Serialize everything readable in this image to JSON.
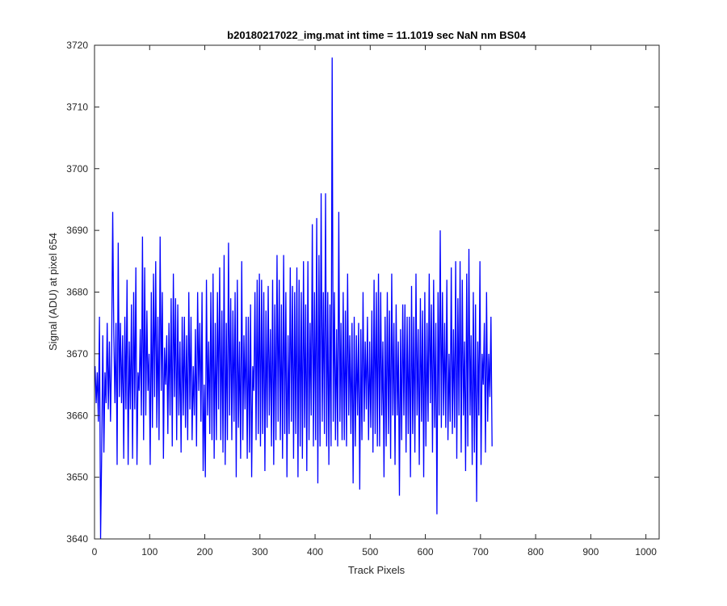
{
  "chart_data": {
    "type": "line",
    "title": "b20180217022_img.mat int time = 11.1019 sec  NaN nm BS04",
    "xlabel": "Track Pixels",
    "ylabel": "Signal (ADU) at pixel 654",
    "xlim": [
      0,
      1024
    ],
    "ylim": [
      3640,
      3720
    ],
    "xticks": [
      0,
      100,
      200,
      300,
      400,
      500,
      600,
      700,
      800,
      900,
      1000
    ],
    "yticks": [
      3640,
      3650,
      3660,
      3670,
      3680,
      3690,
      3700,
      3710,
      3720
    ],
    "grid": false,
    "line_color": "#0000ff",
    "x_start": 1,
    "x_step": 2,
    "series": [
      {
        "values": [
          3668,
          3662,
          3667,
          3659,
          3676,
          3640,
          3654,
          3673,
          3654,
          3667,
          3662,
          3675,
          3661,
          3672,
          3659,
          3670,
          3693,
          3673,
          3662,
          3675,
          3652,
          3688,
          3663,
          3675,
          3662,
          3673,
          3653,
          3676,
          3661,
          3682,
          3652,
          3672,
          3661,
          3678,
          3653,
          3680,
          3661,
          3684,
          3652,
          3667,
          3664,
          3674,
          3660,
          3689,
          3656,
          3684,
          3660,
          3677,
          3664,
          3670,
          3652,
          3680,
          3658,
          3683,
          3663,
          3685,
          3658,
          3676,
          3656,
          3689,
          3664,
          3680,
          3653,
          3671,
          3665,
          3673,
          3657,
          3675,
          3660,
          3679,
          3655,
          3683,
          3663,
          3679,
          3656,
          3678,
          3660,
          3672,
          3654,
          3676,
          3660,
          3676,
          3658,
          3673,
          3656,
          3680,
          3661,
          3676,
          3656,
          3668,
          3660,
          3674,
          3655,
          3680,
          3664,
          3675,
          3659,
          3680,
          3651,
          3665,
          3650,
          3682,
          3660,
          3672,
          3657,
          3680,
          3656,
          3683,
          3653,
          3675,
          3656,
          3680,
          3661,
          3684,
          3656,
          3677,
          3654,
          3686,
          3652,
          3675,
          3656,
          3688,
          3660,
          3679,
          3656,
          3677,
          3659,
          3680,
          3650,
          3682,
          3658,
          3672,
          3653,
          3685,
          3656,
          3673,
          3661,
          3676,
          3653,
          3676,
          3654,
          3678,
          3650,
          3668,
          3664,
          3680,
          3656,
          3682,
          3657,
          3683,
          3655,
          3682,
          3657,
          3680,
          3651,
          3677,
          3658,
          3681,
          3660,
          3674,
          3655,
          3682,
          3652,
          3678,
          3656,
          3686,
          3659,
          3682,
          3656,
          3678,
          3653,
          3686,
          3657,
          3680,
          3650,
          3673,
          3657,
          3684,
          3659,
          3681,
          3653,
          3680,
          3657,
          3684,
          3650,
          3682,
          3655,
          3680,
          3653,
          3685,
          3658,
          3678,
          3651,
          3685,
          3656,
          3675,
          3660,
          3691,
          3655,
          3680,
          3656,
          3692,
          3649,
          3686,
          3655,
          3696,
          3659,
          3680,
          3657,
          3696,
          3655,
          3680,
          3652,
          3678,
          3655,
          3718,
          3659,
          3680,
          3656,
          3674,
          3655,
          3693,
          3659,
          3675,
          3656,
          3680,
          3656,
          3677,
          3655,
          3683,
          3660,
          3673,
          3657,
          3675,
          3649,
          3676,
          3655,
          3673,
          3660,
          3675,
          3648,
          3674,
          3656,
          3680,
          3659,
          3672,
          3661,
          3676,
          3656,
          3672,
          3658,
          3677,
          3654,
          3682,
          3657,
          3680,
          3655,
          3683,
          3655,
          3680,
          3660,
          3672,
          3650,
          3676,
          3655,
          3680,
          3657,
          3677,
          3653,
          3683,
          3660,
          3675,
          3652,
          3678,
          3660,
          3672,
          3647,
          3674,
          3656,
          3678,
          3660,
          3678,
          3654,
          3676,
          3657,
          3676,
          3650,
          3681,
          3657,
          3676,
          3654,
          3683,
          3660,
          3674,
          3652,
          3679,
          3659,
          3677,
          3650,
          3680,
          3655,
          3675,
          3659,
          3683,
          3662,
          3678,
          3654,
          3682,
          3658,
          3675,
          3644,
          3680,
          3660,
          3690,
          3658,
          3680,
          3660,
          3675,
          3658,
          3682,
          3656,
          3670,
          3659,
          3684,
          3657,
          3674,
          3658,
          3685,
          3653,
          3679,
          3660,
          3685,
          3654,
          3682,
          3660,
          3672,
          3651,
          3683,
          3655,
          3687,
          3660,
          3673,
          3652,
          3680,
          3654,
          3678,
          3646,
          3672,
          3660,
          3685,
          3652,
          3670,
          3665,
          3675,
          3654,
          3680,
          3659,
          3670,
          3663,
          3676,
          3655
        ]
      }
    ]
  }
}
